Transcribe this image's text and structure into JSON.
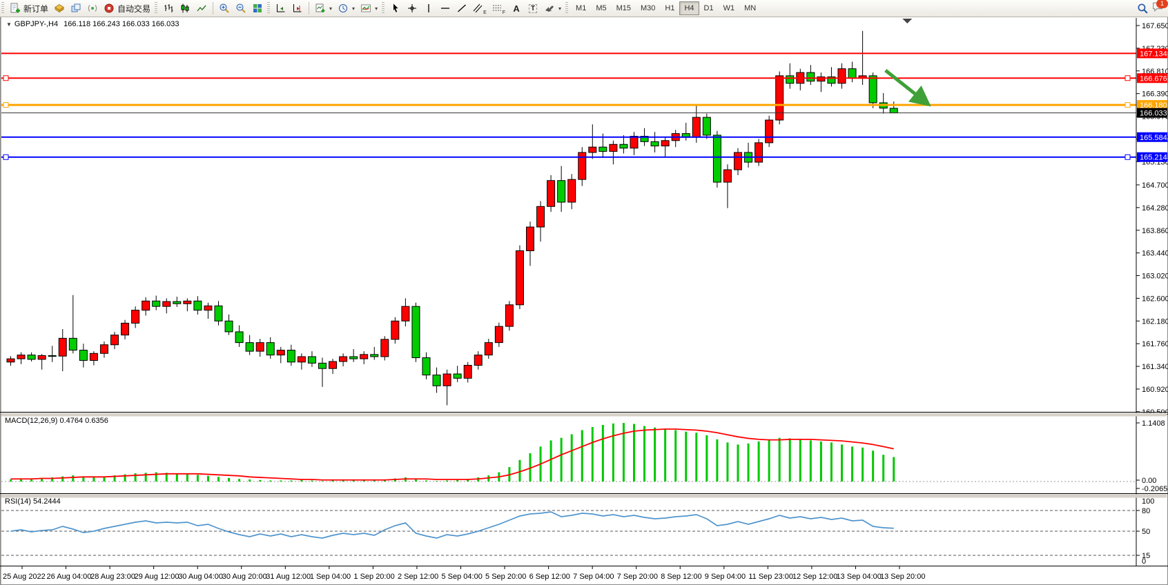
{
  "icons": {
    "caret": "▾",
    "menu_triangle": "▼",
    "letter_A": "A",
    "letter_T": "T",
    "sub_E": "E",
    "sub_F": "F"
  },
  "toolbar": {
    "new_order_label": "新订单",
    "autotrade_label": "自动交易",
    "timeframes": [
      "M1",
      "M5",
      "M15",
      "M30",
      "H1",
      "H4",
      "D1",
      "W1",
      "MN"
    ],
    "active_timeframe": "H4",
    "notification_count": "1"
  },
  "chart": {
    "title_symbol": "GBPJPY-,H4",
    "title_ohlc": "166.118 166.243 166.033 166.033",
    "macd_label": "MACD(12,26,9) 0.4764 0.6356",
    "rsi_label": "RSI(14) 54.2444"
  },
  "chart_data": [
    {
      "type": "candlestick",
      "title": "GBPJPY-,H4",
      "colors": {
        "up": "#FF0000",
        "down": "#00CC00",
        "wick": "#000000"
      },
      "y_ticks": [
        "167.650",
        "167.230",
        "166.810",
        "166.390",
        "165.970",
        "165.550",
        "165.130",
        "164.700",
        "164.280",
        "163.860",
        "163.440",
        "163.020",
        "162.600",
        "162.180",
        "161.760",
        "161.340",
        "160.920",
        "160.500"
      ],
      "x_labels": [
        "25 Aug 2022",
        "26 Aug 04:00",
        "28 Aug 23:00",
        "29 Aug 12:00",
        "30 Aug 04:00",
        "30 Aug 20:00",
        "31 Aug 12:00",
        "1 Sep 04:00",
        "1 Sep 20:00",
        "2 Sep 12:00",
        "5 Sep 04:00",
        "5 Sep 20:00",
        "6 Sep 12:00",
        "7 Sep 04:00",
        "7 Sep 20:00",
        "8 Sep 12:00",
        "9 Sep 04:00",
        "11 Sep 23:00",
        "12 Sep 12:00",
        "13 Sep 04:00",
        "13 Sep 20:00"
      ],
      "candles": [
        [
          161.42,
          161.53,
          161.35,
          161.48
        ],
        [
          161.48,
          161.6,
          161.38,
          161.55
        ],
        [
          161.55,
          161.6,
          161.43,
          161.47
        ],
        [
          161.47,
          161.57,
          161.28,
          161.54
        ],
        [
          161.54,
          161.72,
          161.42,
          161.53
        ],
        [
          161.53,
          162.03,
          161.25,
          161.86
        ],
        [
          161.86,
          162.66,
          161.58,
          161.64
        ],
        [
          161.64,
          161.76,
          161.32,
          161.45
        ],
        [
          161.45,
          161.62,
          161.36,
          161.58
        ],
        [
          161.58,
          161.8,
          161.5,
          161.74
        ],
        [
          161.74,
          161.98,
          161.66,
          161.92
        ],
        [
          161.92,
          162.2,
          161.84,
          162.14
        ],
        [
          162.14,
          162.45,
          162.05,
          162.38
        ],
        [
          162.38,
          162.62,
          162.28,
          162.55
        ],
        [
          162.55,
          162.65,
          162.38,
          162.45
        ],
        [
          162.45,
          162.6,
          162.32,
          162.54
        ],
        [
          162.54,
          162.63,
          162.44,
          162.5
        ],
        [
          162.5,
          162.6,
          162.36,
          162.55
        ],
        [
          162.55,
          162.64,
          162.3,
          162.38
        ],
        [
          162.38,
          162.52,
          162.22,
          162.46
        ],
        [
          162.46,
          162.55,
          162.1,
          162.18
        ],
        [
          162.18,
          162.3,
          161.92,
          161.98
        ],
        [
          161.98,
          162.1,
          161.7,
          161.78
        ],
        [
          161.78,
          161.92,
          161.55,
          161.62
        ],
        [
          161.62,
          161.85,
          161.52,
          161.78
        ],
        [
          161.78,
          161.88,
          161.48,
          161.55
        ],
        [
          161.55,
          161.7,
          161.4,
          161.64
        ],
        [
          161.64,
          161.74,
          161.35,
          161.42
        ],
        [
          161.42,
          161.58,
          161.28,
          161.52
        ],
        [
          161.52,
          161.62,
          161.33,
          161.4
        ],
        [
          161.4,
          161.5,
          160.96,
          161.3
        ],
        [
          161.3,
          161.48,
          161.2,
          161.43
        ],
        [
          161.43,
          161.58,
          161.34,
          161.52
        ],
        [
          161.52,
          161.66,
          161.42,
          161.48
        ],
        [
          161.48,
          161.62,
          161.38,
          161.56
        ],
        [
          161.56,
          161.7,
          161.46,
          161.52
        ],
        [
          161.52,
          161.9,
          161.45,
          161.84
        ],
        [
          161.84,
          162.25,
          161.76,
          162.18
        ],
        [
          162.18,
          162.6,
          162.08,
          162.45
        ],
        [
          162.45,
          162.52,
          161.42,
          161.5
        ],
        [
          161.5,
          161.6,
          161.1,
          161.18
        ],
        [
          161.18,
          161.32,
          160.85,
          160.98
        ],
        [
          160.98,
          161.28,
          160.62,
          161.2
        ],
        [
          161.2,
          161.35,
          161.05,
          161.12
        ],
        [
          161.12,
          161.42,
          161.04,
          161.36
        ],
        [
          161.36,
          161.62,
          161.28,
          161.55
        ],
        [
          161.55,
          161.85,
          161.48,
          161.78
        ],
        [
          161.78,
          162.15,
          161.7,
          162.08
        ],
        [
          162.08,
          162.55,
          162.0,
          162.48
        ],
        [
          162.48,
          163.58,
          162.4,
          163.48
        ],
        [
          163.48,
          164.02,
          163.2,
          163.92
        ],
        [
          163.92,
          164.4,
          163.65,
          164.3
        ],
        [
          164.3,
          164.88,
          164.2,
          164.78
        ],
        [
          164.78,
          165.05,
          164.2,
          164.38
        ],
        [
          164.38,
          164.9,
          164.25,
          164.8
        ],
        [
          164.8,
          165.4,
          164.68,
          165.3
        ],
        [
          165.3,
          165.82,
          165.18,
          165.4
        ],
        [
          165.4,
          165.65,
          165.2,
          165.32
        ],
        [
          165.32,
          165.52,
          165.08,
          165.45
        ],
        [
          165.45,
          165.62,
          165.28,
          165.38
        ],
        [
          165.38,
          165.68,
          165.25,
          165.6
        ],
        [
          165.6,
          165.75,
          165.42,
          165.5
        ],
        [
          165.5,
          165.68,
          165.3,
          165.42
        ],
        [
          165.42,
          165.58,
          165.22,
          165.52
        ],
        [
          165.52,
          165.72,
          165.4,
          165.65
        ],
        [
          165.65,
          165.85,
          165.52,
          165.58
        ],
        [
          165.58,
          166.17,
          165.48,
          165.95
        ],
        [
          165.95,
          166.02,
          165.55,
          165.62
        ],
        [
          165.62,
          165.7,
          164.65,
          164.75
        ],
        [
          164.75,
          165.08,
          164.27,
          164.98
        ],
        [
          164.98,
          165.38,
          164.88,
          165.3
        ],
        [
          165.3,
          165.48,
          165.02,
          165.12
        ],
        [
          165.12,
          165.55,
          165.05,
          165.48
        ],
        [
          165.48,
          165.98,
          165.4,
          165.9
        ],
        [
          165.9,
          166.8,
          165.82,
          166.72
        ],
        [
          166.72,
          166.95,
          166.48,
          166.58
        ],
        [
          166.58,
          166.85,
          166.45,
          166.78
        ],
        [
          166.78,
          166.92,
          166.55,
          166.62
        ],
        [
          166.62,
          166.78,
          166.42,
          166.7
        ],
        [
          166.7,
          166.88,
          166.52,
          166.58
        ],
        [
          166.58,
          166.95,
          166.48,
          166.85
        ],
        [
          166.85,
          166.98,
          166.6,
          166.68
        ],
        [
          166.68,
          167.55,
          166.55,
          166.72
        ],
        [
          166.72,
          166.78,
          166.12,
          166.22
        ],
        [
          166.22,
          166.4,
          166.02,
          166.12
        ],
        [
          166.118,
          166.243,
          166.033,
          166.033
        ]
      ],
      "hlines": [
        {
          "price": 167.134,
          "label": "167.134",
          "color": "#FF0000",
          "width": 2,
          "handles": false
        },
        {
          "price": 166.676,
          "label": "166.676",
          "color": "#FF0000",
          "width": 2,
          "handles": true
        },
        {
          "price": 166.18,
          "label": "166.180",
          "color": "#FFA500",
          "width": 3,
          "handles": true
        },
        {
          "price": 165.584,
          "label": "165.584",
          "color": "#0000FF",
          "width": 2,
          "handles": false
        },
        {
          "price": 165.214,
          "label": "165.214",
          "color": "#0000FF",
          "width": 2,
          "handles": true
        }
      ],
      "bid": {
        "price": 166.033,
        "label": "166.033",
        "box_color": "#000000"
      },
      "arrow": {
        "from_index": 84.2,
        "from_price": 166.82,
        "to_index": 88.2,
        "to_price": 166.21,
        "color": "#3FA037"
      },
      "shift_marker_index": 86.3
    },
    {
      "type": "bar",
      "name": "MACD",
      "params": "12,26,9",
      "display_values": "0.4764 0.6356",
      "colors": {
        "histogram": "#00C800",
        "signal": "#FF0000"
      },
      "y_ticks": [
        "1.1408",
        "0.00",
        "-0.2065"
      ],
      "values": [
        0.04,
        0.05,
        0.06,
        0.07,
        0.08,
        0.1,
        0.12,
        0.1,
        0.09,
        0.1,
        0.12,
        0.14,
        0.16,
        0.17,
        0.18,
        0.17,
        0.16,
        0.15,
        0.13,
        0.11,
        0.09,
        0.07,
        0.05,
        0.04,
        0.03,
        0.02,
        0.02,
        0.02,
        0.03,
        0.02,
        0.01,
        0.02,
        0.03,
        0.03,
        0.02,
        0.02,
        0.04,
        0.06,
        0.08,
        0.05,
        0.02,
        0.01,
        0.02,
        0.03,
        0.05,
        0.08,
        0.12,
        0.18,
        0.28,
        0.42,
        0.55,
        0.68,
        0.8,
        0.85,
        0.92,
        1.0,
        1.06,
        1.1,
        1.13,
        1.14,
        1.12,
        1.08,
        1.05,
        1.02,
        1.0,
        0.97,
        0.95,
        0.9,
        0.82,
        0.76,
        0.72,
        0.74,
        0.78,
        0.82,
        0.85,
        0.84,
        0.82,
        0.8,
        0.78,
        0.76,
        0.72,
        0.68,
        0.66,
        0.6,
        0.52,
        0.4764
      ],
      "signal": [
        0.05,
        0.05,
        0.05,
        0.06,
        0.06,
        0.07,
        0.08,
        0.09,
        0.09,
        0.09,
        0.1,
        0.11,
        0.12,
        0.13,
        0.14,
        0.15,
        0.15,
        0.15,
        0.15,
        0.14,
        0.13,
        0.12,
        0.11,
        0.09,
        0.08,
        0.07,
        0.06,
        0.05,
        0.04,
        0.04,
        0.03,
        0.03,
        0.03,
        0.03,
        0.03,
        0.03,
        0.03,
        0.04,
        0.05,
        0.05,
        0.05,
        0.04,
        0.04,
        0.04,
        0.04,
        0.05,
        0.07,
        0.09,
        0.13,
        0.19,
        0.26,
        0.34,
        0.43,
        0.52,
        0.6,
        0.68,
        0.76,
        0.83,
        0.89,
        0.94,
        0.98,
        1.0,
        1.01,
        1.02,
        1.02,
        1.01,
        1.0,
        0.98,
        0.95,
        0.91,
        0.87,
        0.84,
        0.82,
        0.81,
        0.81,
        0.82,
        0.82,
        0.82,
        0.81,
        0.8,
        0.79,
        0.77,
        0.75,
        0.72,
        0.68,
        0.6356
      ]
    },
    {
      "type": "line",
      "name": "RSI",
      "params": "14",
      "display_value": "54.2444",
      "color": "#4F94CD",
      "range": [
        0,
        100
      ],
      "levels": [
        80,
        50,
        15
      ],
      "y_ticks": [
        "100",
        "80",
        "50",
        "15",
        "0"
      ],
      "values": [
        50,
        52,
        49,
        51,
        52,
        57,
        53,
        48,
        50,
        54,
        57,
        60,
        63,
        65,
        62,
        63,
        62,
        63,
        58,
        60,
        54,
        49,
        45,
        42,
        46,
        43,
        46,
        42,
        45,
        42,
        40,
        44,
        47,
        45,
        47,
        44,
        52,
        58,
        62,
        47,
        43,
        40,
        45,
        43,
        46,
        50,
        55,
        60,
        66,
        72,
        75,
        76,
        78,
        71,
        73,
        76,
        75,
        72,
        74,
        71,
        73,
        70,
        68,
        69,
        71,
        72,
        74,
        68,
        58,
        60,
        64,
        60,
        64,
        68,
        73,
        69,
        71,
        68,
        70,
        67,
        69,
        65,
        66,
        57,
        55,
        54.24
      ]
    }
  ]
}
